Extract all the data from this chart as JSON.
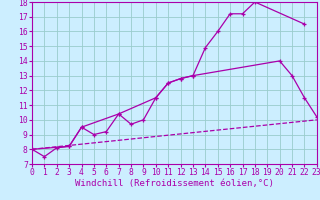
{
  "xlabel": "Windchill (Refroidissement éolien,°C)",
  "xlim": [
    0,
    23
  ],
  "ylim": [
    7,
    18
  ],
  "xticks": [
    0,
    1,
    2,
    3,
    4,
    5,
    6,
    7,
    8,
    9,
    10,
    11,
    12,
    13,
    14,
    15,
    16,
    17,
    18,
    19,
    20,
    21,
    22,
    23
  ],
  "yticks": [
    7,
    8,
    9,
    10,
    11,
    12,
    13,
    14,
    15,
    16,
    17,
    18
  ],
  "background_color": "#cceeff",
  "grid_color": "#99cccc",
  "line_color": "#aa00aa",
  "line1_x": [
    0,
    1,
    2,
    3,
    4,
    5,
    6,
    7,
    8,
    9,
    10,
    11,
    12,
    13,
    14,
    15,
    16,
    17,
    18,
    22
  ],
  "line1_y": [
    8.0,
    7.5,
    8.1,
    8.2,
    9.5,
    9.0,
    9.2,
    10.4,
    9.7,
    10.0,
    11.5,
    12.5,
    12.8,
    13.0,
    14.9,
    16.0,
    17.2,
    17.2,
    18.0,
    16.5
  ],
  "line2_x": [
    0,
    3,
    4,
    7,
    10,
    11,
    12,
    13,
    20,
    21,
    22,
    23
  ],
  "line2_y": [
    8.0,
    8.2,
    9.5,
    10.4,
    11.5,
    12.5,
    12.8,
    13.0,
    14.0,
    13.0,
    11.5,
    10.2
  ],
  "line3_x": [
    0,
    23
  ],
  "line3_y": [
    8.0,
    10.0
  ],
  "font_family": "monospace",
  "xlabel_fontsize": 6.5,
  "tick_fontsize": 5.8
}
